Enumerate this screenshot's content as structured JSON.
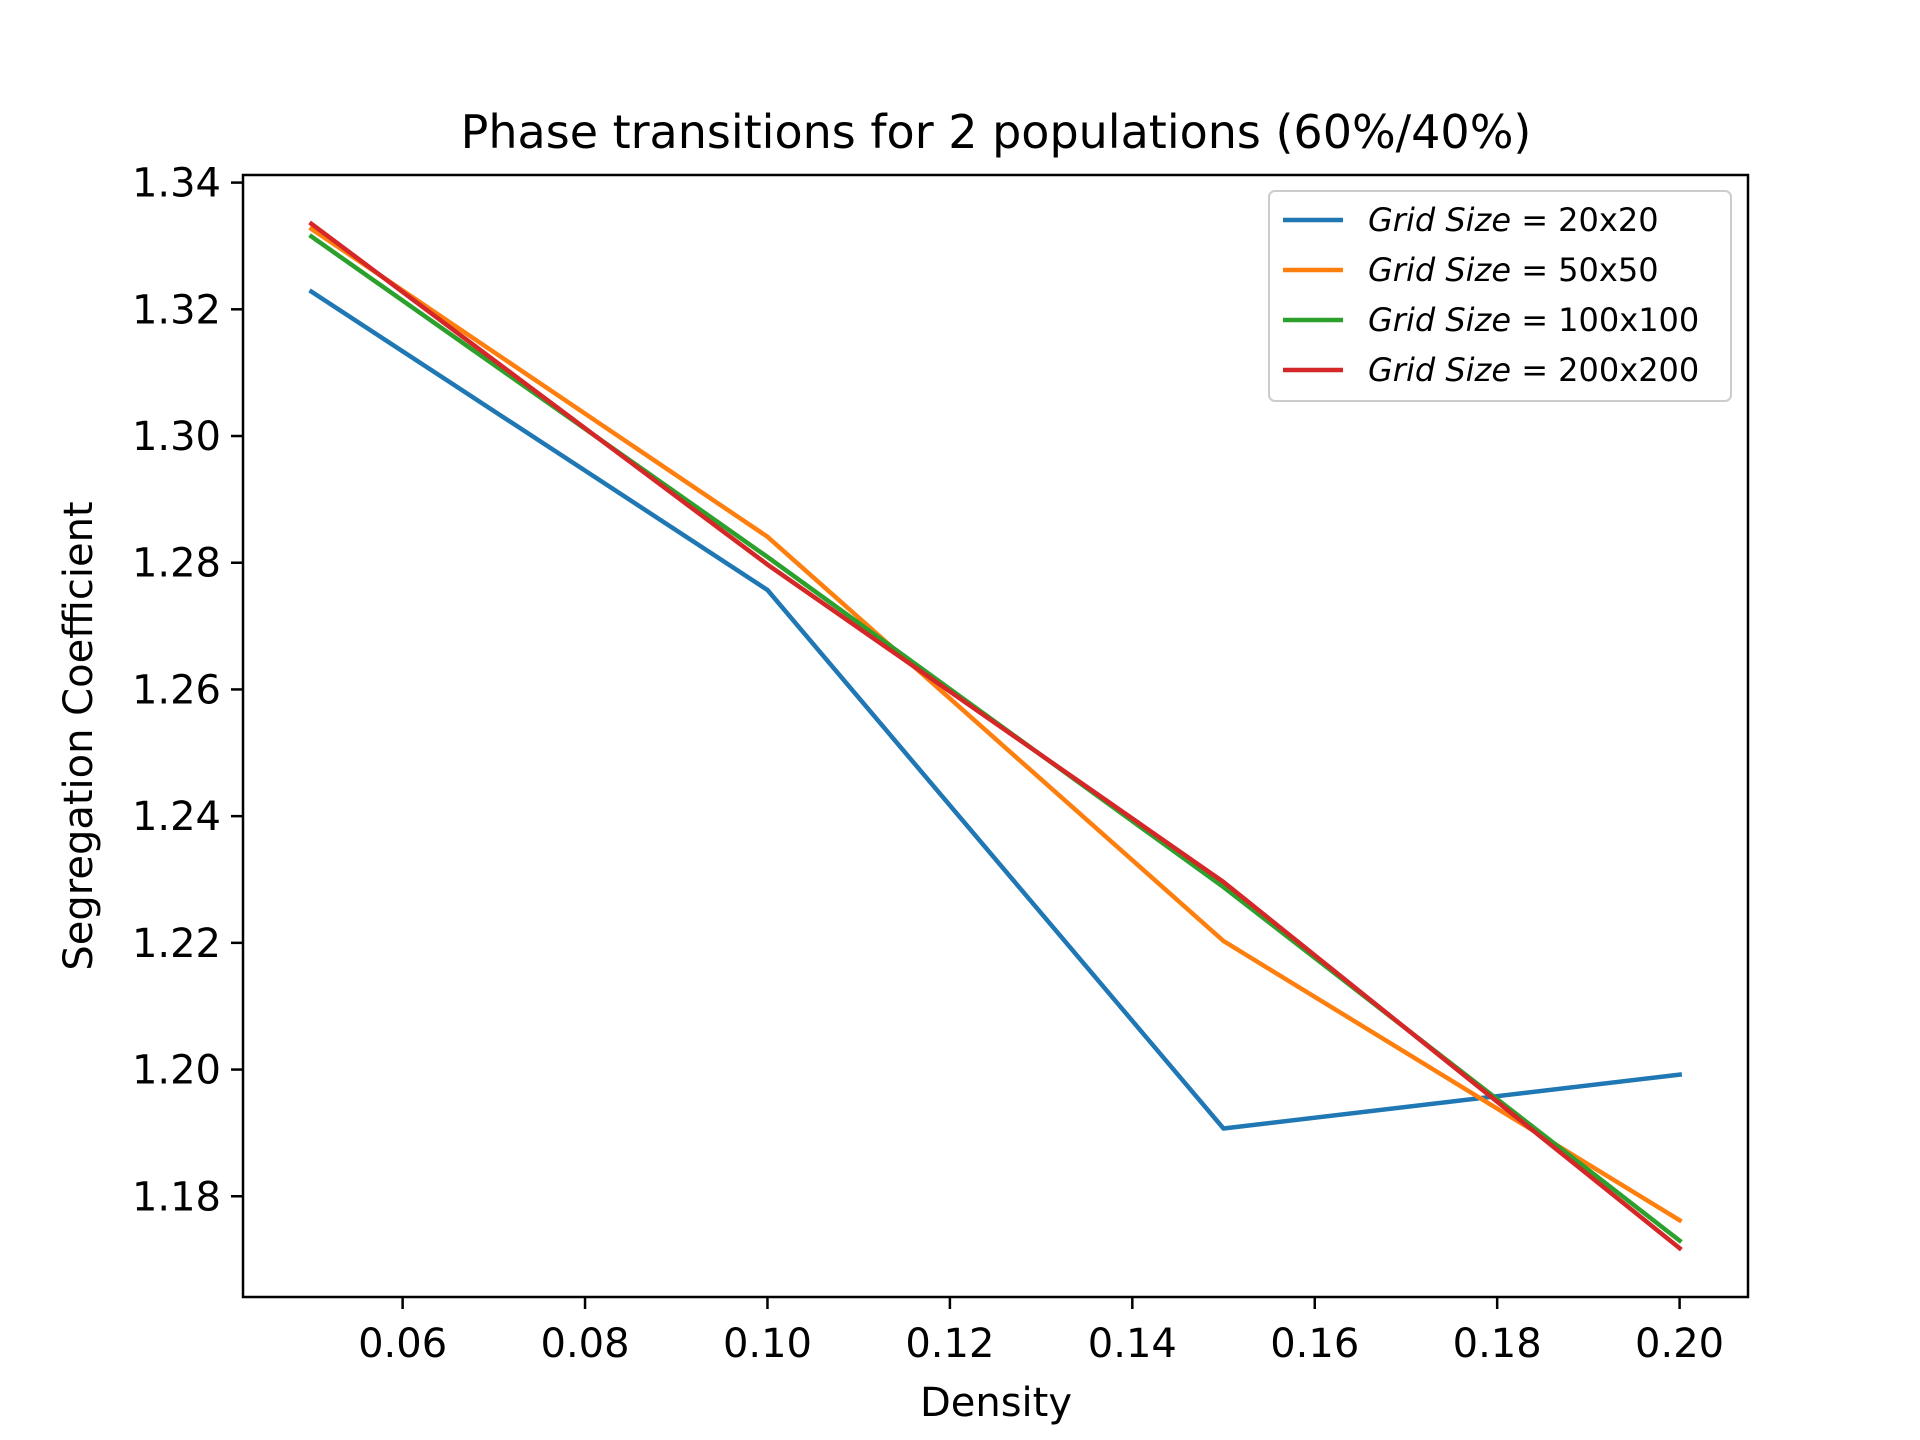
{
  "chart_data": {
    "type": "line",
    "title": "Phase transitions for 2 populations (60%/40%)",
    "xlabel": "Density",
    "ylabel": "Segregation Coefficient",
    "xlim": [
      0.0425,
      0.2075
    ],
    "ylim": [
      1.1641,
      1.3412
    ],
    "xticks": [
      0.06,
      0.08,
      0.1,
      0.12,
      0.14,
      0.16,
      0.18,
      0.2
    ],
    "xtick_labels": [
      "0.06",
      "0.08",
      "0.10",
      "0.12",
      "0.14",
      "0.16",
      "0.18",
      "0.20"
    ],
    "yticks": [
      1.18,
      1.2,
      1.22,
      1.24,
      1.26,
      1.28,
      1.3,
      1.32,
      1.34
    ],
    "ytick_labels": [
      "1.18",
      "1.20",
      "1.22",
      "1.24",
      "1.26",
      "1.28",
      "1.30",
      "1.32",
      "1.34"
    ],
    "grid": false,
    "legend_position": "top-right",
    "x": [
      0.05,
      0.1,
      0.15,
      0.2
    ],
    "series": [
      {
        "name": "Grid Size = 20x20",
        "name_italic": "Grid Size",
        "name_eq": " = ",
        "name_val": "20x20",
        "color": "#1f77b4",
        "values": [
          1.3228,
          1.2757,
          1.1907,
          1.1992
        ]
      },
      {
        "name": "Grid Size = 50x50",
        "name_italic": "Grid Size",
        "name_eq": " = ",
        "name_val": "50x50",
        "color": "#ff7f0e",
        "values": [
          1.3327,
          1.2841,
          1.2203,
          1.1762
        ]
      },
      {
        "name": "Grid Size = 100x100",
        "name_italic": "Grid Size",
        "name_eq": " = ",
        "name_val": "100x100",
        "color": "#2ca02c",
        "values": [
          1.3315,
          1.2809,
          1.2288,
          1.173
        ]
      },
      {
        "name": "Grid Size = 200x200",
        "name_italic": "Grid Size",
        "name_eq": " = ",
        "name_val": "200x200",
        "color": "#d62728",
        "values": [
          1.3335,
          1.2797,
          1.2296,
          1.1718
        ]
      }
    ]
  }
}
